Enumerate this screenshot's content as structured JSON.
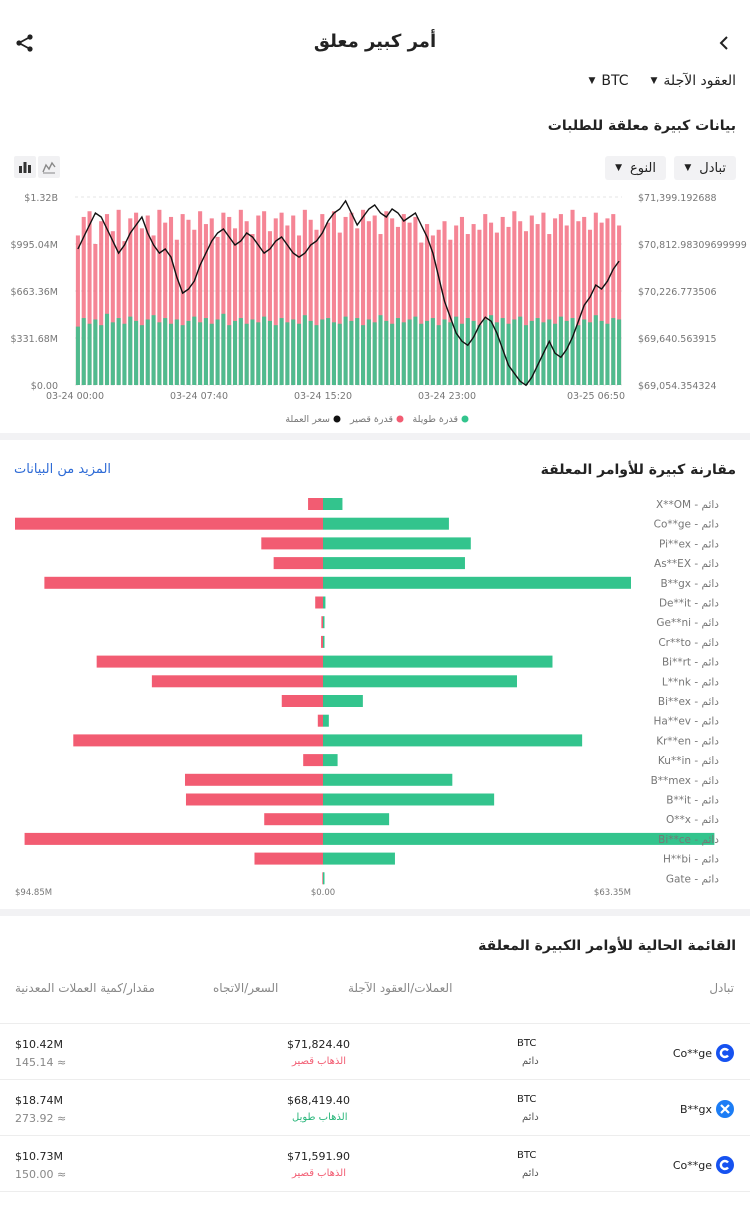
{
  "header": {
    "title": "أمر كبير معلق",
    "back_icon": "chevron-left-icon",
    "share_icon": "share-icon"
  },
  "filters": {
    "market": "العقود الآجلة",
    "coin": "BTC"
  },
  "open_interest": {
    "title": "بيانات كبيرة معلقة للطلبات",
    "dropdown_exchange": "تبادل",
    "dropdown_type": "النوع",
    "chart_data": {
      "type": "bar",
      "y_left_ticks": [
        "$1.32B",
        "$995.04M",
        "$663.36M",
        "$331.68M",
        "$0.00"
      ],
      "y_right_ticks": [
        "$71,399.192688",
        "$70,812.98309699999",
        "$70,226.773506",
        "$69,640.563915",
        "$69,054.354324"
      ],
      "x_ticks": [
        "03-24 00:00",
        "03-24 07:40",
        "03-24 15:20",
        "03-24 23:00",
        "03-25 06:50"
      ],
      "ylim": [
        0,
        1320000000
      ],
      "price_lim": [
        69054.354324,
        71399.192688
      ],
      "legend": [
        "قدرة طويلة",
        "قدرة قصير",
        "سعر العملة"
      ],
      "colors": {
        "long": "#33c48d",
        "short": "#f25c72",
        "price": "#111111"
      },
      "price_series": [
        70750,
        70900,
        71050,
        71200,
        71150,
        71000,
        70850,
        70700,
        70800,
        70950,
        71050,
        71150,
        70950,
        70800,
        70700,
        70750,
        70650,
        70400,
        70200,
        70250,
        70350,
        70550,
        70700,
        70850,
        70950,
        71000,
        70900,
        70800,
        70850,
        70950,
        70900,
        70800,
        70700,
        70750,
        70850,
        70900,
        70800,
        70700,
        70650,
        70700,
        70800,
        70850,
        70950,
        71100,
        71200,
        71250,
        71350,
        71200,
        71050,
        71150,
        71250,
        71300,
        71200,
        71150,
        71250,
        71200,
        71100,
        71150,
        71200,
        71050,
        70900,
        70700,
        70400,
        70100,
        69900,
        69700,
        69600,
        69550,
        69650,
        69800,
        69900,
        69850,
        69700,
        69500,
        69300,
        69200,
        69100,
        69050,
        69150,
        69300,
        69450,
        69600,
        69450,
        69400,
        69500,
        69650,
        69850,
        70050,
        70150,
        70300,
        70250,
        70350,
        70500,
        70600
      ],
      "long_series": [
        410,
        470,
        430,
        460,
        420,
        500,
        440,
        470,
        430,
        480,
        450,
        420,
        460,
        490,
        440,
        470,
        430,
        460,
        420,
        450,
        480,
        440,
        470,
        430,
        460,
        500,
        420,
        450,
        470,
        430,
        460,
        440,
        480,
        450,
        420,
        470,
        440,
        460,
        430,
        490,
        450,
        420,
        460,
        470,
        440,
        430,
        480,
        450,
        470,
        420,
        460,
        440,
        490,
        450,
        430,
        470,
        440,
        460,
        480,
        430,
        450,
        470,
        420,
        460,
        440,
        480,
        430,
        470,
        450,
        420,
        460,
        490,
        440,
        470,
        430,
        460,
        480,
        420,
        450,
        470,
        440,
        460,
        430,
        480,
        450,
        470,
        420,
        460,
        440,
        490,
        450,
        430,
        470,
        460
      ],
      "short_series": [
        1050,
        1180,
        1220,
        990,
        1150,
        1200,
        1080,
        1230,
        1010,
        1170,
        1210,
        1100,
        1190,
        1050,
        1230,
        1140,
        1180,
        1020,
        1200,
        1160,
        1090,
        1220,
        1130,
        1170,
        1040,
        1210,
        1180,
        1100,
        1230,
        1150,
        1060,
        1190,
        1220,
        1080,
        1170,
        1210,
        1120,
        1190,
        1050,
        1230,
        1160,
        1090,
        1200,
        1140,
        1220,
        1070,
        1180,
        1210,
        1100,
        1230,
        1150,
        1190,
        1060,
        1220,
        1170,
        1110,
        1200,
        1140,
        1180,
        1000,
        1130,
        1050,
        1090,
        1150,
        1020,
        1120,
        1180,
        1060,
        1130,
        1090,
        1200,
        1140,
        1070,
        1180,
        1110,
        1220,
        1150,
        1080,
        1190,
        1130,
        1210,
        1060,
        1170,
        1200,
        1120,
        1230,
        1150,
        1180,
        1090,
        1210,
        1140,
        1170,
        1200,
        1120
      ]
    }
  },
  "comparison": {
    "title": "مقارنة كبيرة للأوامر المعلقة",
    "more_link": "المزيد من البيانات",
    "chart_data": {
      "type": "bar",
      "orientation": "horizontal-diverging",
      "categories": [
        "X**OM - دائم",
        "Co**ge - دائم",
        "Pi**ex - دائم",
        "As**EX - دائم",
        "B**gx - دائم",
        "De**it - دائم",
        "Ge**ni - دائم",
        "Cr**to - دائم",
        "Bi**rt - دائم",
        "L**nk - دائم",
        "Bi**ex - دائم",
        "Ha**ev - دائم",
        "Kr**en - دائم",
        "Ku**in - دائم",
        "B**mex - دائم",
        "B**it - دائم",
        "O**x - دائم",
        "Bi**ce - دائم",
        "H**bi - دائم",
        "Gate - دائم"
      ],
      "series": [
        {
          "name": "long",
          "values": [
            4.0,
            25.9,
            30.4,
            29.2,
            63.35,
            0.5,
            0.2,
            0.3,
            47.2,
            39.9,
            8.2,
            1.2,
            53.3,
            3.0,
            26.6,
            35.2,
            13.6,
            80.5,
            14.8,
            0.2
          ]
        },
        {
          "name": "short",
          "values": [
            4.6,
            94.85,
            19.0,
            15.2,
            85.8,
            2.4,
            0.5,
            0.6,
            69.7,
            52.7,
            12.7,
            1.6,
            76.9,
            6.1,
            42.5,
            42.2,
            18.1,
            91.9,
            21.1,
            0.2
          ]
        }
      ],
      "x_ticks": [
        "$94.85M",
        "$0.00",
        "$63.35M"
      ],
      "colors": {
        "long": "#33c48d",
        "short": "#f25c72"
      }
    }
  },
  "list": {
    "title": "القائمة الحالية للأوامر الكبيرة المعلقة",
    "headers": {
      "exchange": "تبادل",
      "coin": "العملات/العقود الآجلة",
      "price": "السعر/الاتجاه",
      "amount": "مقدار/كمية العملات المعدنية"
    },
    "rows": [
      {
        "exchange": "Co**ge",
        "logo_color": "#1652f0",
        "coin": "BTC",
        "contract": "دائم",
        "price": "$71,824.40",
        "direction": "الذهاب قصير",
        "direction_color": "#f25c72",
        "amount": "$10.42M",
        "qty": "145.14 ≈"
      },
      {
        "exchange": "B**gx",
        "logo_color": "#1c7df5",
        "coin": "BTC",
        "contract": "دائم",
        "price": "$68,419.40",
        "direction": "الذهاب طويل",
        "direction_color": "#28b67a",
        "amount": "$18.74M",
        "qty": "273.92 ≈"
      },
      {
        "exchange": "Co**ge",
        "logo_color": "#1652f0",
        "coin": "BTC",
        "contract": "دائم",
        "price": "$71,591.90",
        "direction": "الذهاب قصير",
        "direction_color": "#f25c72",
        "amount": "$10.73M",
        "qty": "150.00 ≈"
      }
    ]
  }
}
